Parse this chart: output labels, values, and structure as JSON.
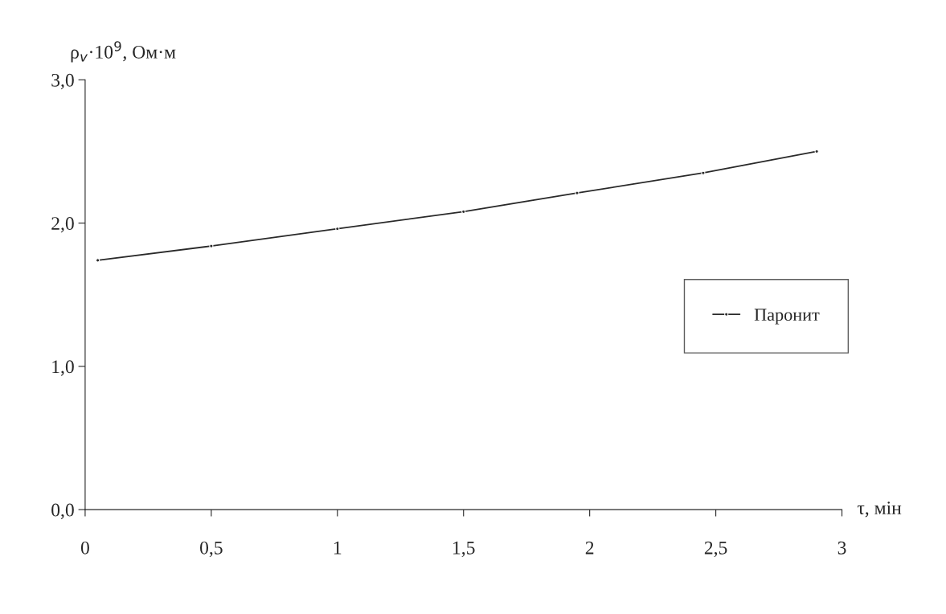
{
  "chart_data": {
    "type": "line",
    "xlabel": "τ, мін",
    "ylabel": "ρ$_{v}$·10$^{9}$, Ом·м",
    "series": [
      {
        "name": "Паронит",
        "color": "#2a2a2a",
        "x": [
          0.05,
          0.5,
          1,
          1.5,
          1.95,
          2.45,
          2.9
        ],
        "values": [
          1.74,
          1.84,
          1.96,
          2.08,
          2.21,
          2.35,
          2.5
        ]
      }
    ],
    "xlim": [
      0,
      3
    ],
    "ylim": [
      0,
      3
    ],
    "xticks": [
      0,
      {
        "value": 0.5,
        "label": "0,5"
      },
      1,
      {
        "value": 1.5,
        "label": "1,5"
      },
      2,
      {
        "value": 2.5,
        "label": "2,5"
      },
      3
    ],
    "yticks": [
      {
        "value": 0,
        "label": "0,0"
      },
      {
        "value": 1,
        "label": "1,0"
      },
      {
        "value": 2,
        "label": "2,0"
      },
      {
        "value": 3,
        "label": "3,0"
      }
    ],
    "grid": false,
    "legend": "right",
    "marker": "circle",
    "line_style": "solid"
  }
}
